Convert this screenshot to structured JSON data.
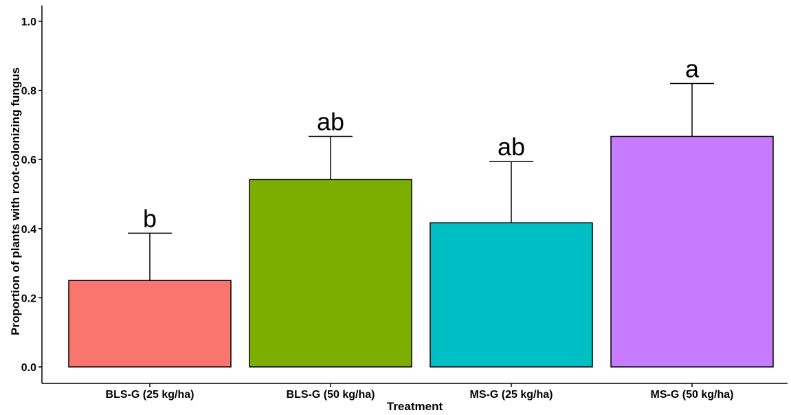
{
  "chart_data": {
    "type": "bar",
    "title": "",
    "xlabel": "Treatment",
    "ylabel": "Proportion of plants with root-colonizing fungus",
    "ylim": [
      0,
      1.04
    ],
    "y_ticks": [
      0.0,
      0.2,
      0.4,
      0.6,
      0.8,
      1.0
    ],
    "y_tick_labels": [
      "0.0",
      "0.2",
      "0.4",
      "0.6",
      "0.8",
      "1.0"
    ],
    "grid": false,
    "legend": "none",
    "categories": [
      "BLS-G (25 kg/ha)",
      "BLS-G (50 kg/ha)",
      "MS-G (25 kg/ha)",
      "MS-G (50 kg/ha)"
    ],
    "values": [
      0.25,
      0.542,
      0.417,
      0.667
    ],
    "error_upper": [
      0.387,
      0.667,
      0.594,
      0.82
    ],
    "significance_labels": [
      "b",
      "ab",
      "ab",
      "a"
    ],
    "colors": [
      "#F8766D",
      "#7CAE00",
      "#00BFC4",
      "#C77CFF"
    ]
  }
}
